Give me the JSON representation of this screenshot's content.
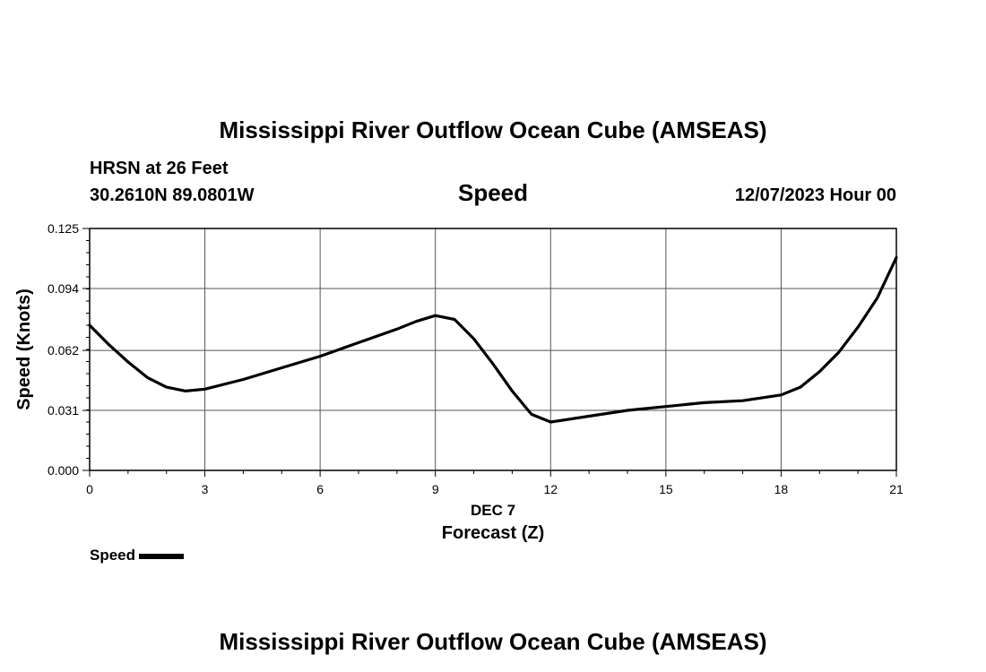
{
  "header": {
    "title": "Mississippi River Outflow Ocean Cube (AMSEAS)",
    "location": "HRSN at 26 Feet",
    "coordinates": "30.2610N  89.0801W",
    "variable": "Speed",
    "datetime": "12/07/2023 Hour 00"
  },
  "footer": {
    "title": "Mississippi River Outflow Ocean Cube (AMSEAS)"
  },
  "legend": {
    "label": "Speed",
    "color": "#000000"
  },
  "chart_data": {
    "type": "line",
    "ylabel": "Speed (Knots)",
    "xlabel": "Forecast (Z)",
    "x_date_label": "DEC 7",
    "ylim": [
      0,
      0.125
    ],
    "xlim": [
      0,
      21
    ],
    "xticks": [
      0,
      3,
      6,
      9,
      12,
      15,
      18,
      21
    ],
    "yticks": [
      {
        "value": 0,
        "label": "0.000"
      },
      {
        "value": 0.031,
        "label": "0.031"
      },
      {
        "value": 0.062,
        "label": "0.062"
      },
      {
        "value": 0.094,
        "label": "0.094"
      },
      {
        "value": 0.125,
        "label": "0.125"
      }
    ],
    "grid": true,
    "series": [
      {
        "name": "Speed",
        "color": "#000000",
        "x": [
          0,
          0.5,
          1,
          1.5,
          2,
          2.5,
          3,
          4,
          5,
          6,
          7,
          8,
          8.5,
          9,
          9.5,
          10,
          10.5,
          11,
          11.5,
          12,
          13,
          14,
          15,
          16,
          17,
          18,
          18.5,
          19,
          19.5,
          20,
          20.5,
          21
        ],
        "y": [
          0.075,
          0.065,
          0.056,
          0.048,
          0.043,
          0.041,
          0.042,
          0.047,
          0.053,
          0.059,
          0.066,
          0.073,
          0.077,
          0.08,
          0.078,
          0.068,
          0.055,
          0.041,
          0.029,
          0.025,
          0.028,
          0.031,
          0.033,
          0.035,
          0.036,
          0.039,
          0.043,
          0.051,
          0.061,
          0.074,
          0.089,
          0.11
        ]
      }
    ]
  }
}
